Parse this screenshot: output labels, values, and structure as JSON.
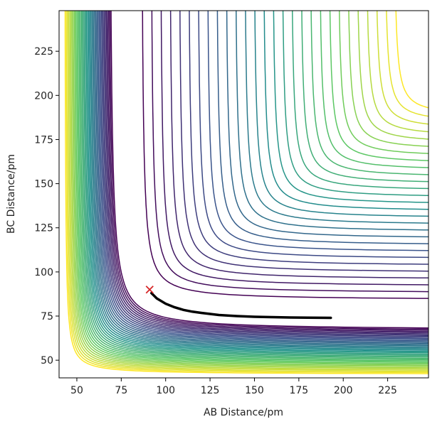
{
  "chart_data": {
    "type": "contour",
    "xlabel": "AB Distance/pm",
    "ylabel": "BC Distance/pm",
    "xlim": [
      40,
      248
    ],
    "ylim": [
      40,
      248
    ],
    "xticks": [
      50,
      75,
      100,
      125,
      150,
      175,
      200,
      225
    ],
    "yticks": [
      50,
      75,
      100,
      125,
      150,
      175,
      200,
      225
    ],
    "trajectory": {
      "color": "#000000",
      "x": [
        92,
        95,
        100,
        105,
        110,
        115,
        120,
        125,
        130,
        140,
        150,
        160,
        170,
        180,
        193
      ],
      "y": [
        88,
        85,
        82,
        80,
        78.5,
        77.5,
        76.8,
        76.2,
        75.6,
        75,
        74.6,
        74.4,
        74.2,
        74.1,
        74
      ]
    },
    "marker": {
      "x": 91,
      "y": 90,
      "color": "#d62728"
    }
  }
}
